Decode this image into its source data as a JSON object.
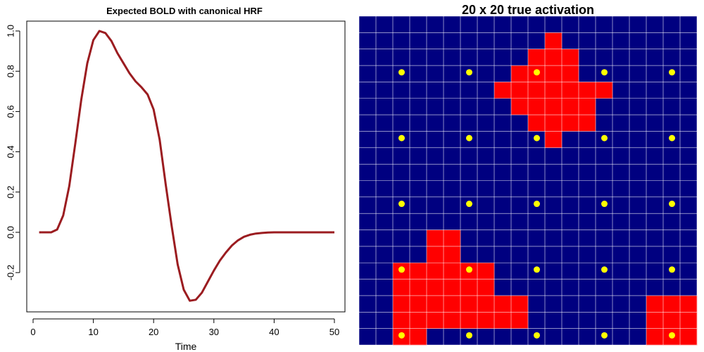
{
  "chart_data": [
    {
      "type": "line",
      "title": "Expected BOLD with canonical HRF",
      "xlabel": "Time",
      "ylabel": "",
      "xlim": [
        0,
        50
      ],
      "ylim": [
        -0.35,
        1.0
      ],
      "xticks": [
        "0",
        "10",
        "20",
        "30",
        "40",
        "50"
      ],
      "yticks": [
        "-0.2",
        "0.0",
        "0.2",
        "0.4",
        "0.6",
        "0.8",
        "1.0"
      ],
      "series": [
        {
          "color": "#9b1c20",
          "x": [
            1,
            2,
            3,
            4,
            5,
            6,
            7,
            8,
            9,
            10,
            11,
            12,
            13,
            14,
            15,
            16,
            17,
            18,
            19,
            20,
            21,
            22,
            23,
            24,
            25,
            26,
            27,
            28,
            29,
            30,
            31,
            32,
            33,
            34,
            35,
            36,
            37,
            38,
            39,
            40,
            41,
            42,
            43,
            44,
            45,
            46,
            47,
            48,
            49,
            50
          ],
          "y": [
            0,
            0,
            0,
            0.014,
            0.084,
            0.23,
            0.44,
            0.66,
            0.84,
            0.955,
            1.0,
            0.99,
            0.95,
            0.89,
            0.84,
            0.79,
            0.75,
            0.72,
            0.685,
            0.61,
            0.46,
            0.24,
            0.03,
            -0.16,
            -0.285,
            -0.34,
            -0.335,
            -0.3,
            -0.245,
            -0.19,
            -0.14,
            -0.1,
            -0.065,
            -0.04,
            -0.022,
            -0.012,
            -0.006,
            -0.003,
            -0.001,
            0,
            0,
            0,
            0,
            0,
            0,
            0,
            0,
            0,
            0,
            0
          ]
        }
      ]
    },
    {
      "type": "heatmap",
      "title": "20 x 20 true activation",
      "grid_size": [
        20,
        20
      ],
      "colors": {
        "background": "#000080",
        "active": "#ff0000",
        "gridline": "#ffffff",
        "point": "#ffff00"
      },
      "active_cells_rows_top_to_bottom": [
        "....................",
        "...........#........",
        "..........###.......",
        ".........####.......",
        "........#######.....",
        ".........#####......",
        "..........####......",
        "...........#........",
        "....................",
        "....................",
        "....................",
        "....................",
        "....................",
        "....##..............",
        "....##..............",
        "..######............",
        "..######............",
        "..########.......###",
        "..########.......###",
        "..##.............###"
      ],
      "points_x": [
        3,
        7,
        11,
        15,
        19
      ],
      "points_y": [
        4,
        8,
        12,
        16,
        20
      ]
    }
  ]
}
